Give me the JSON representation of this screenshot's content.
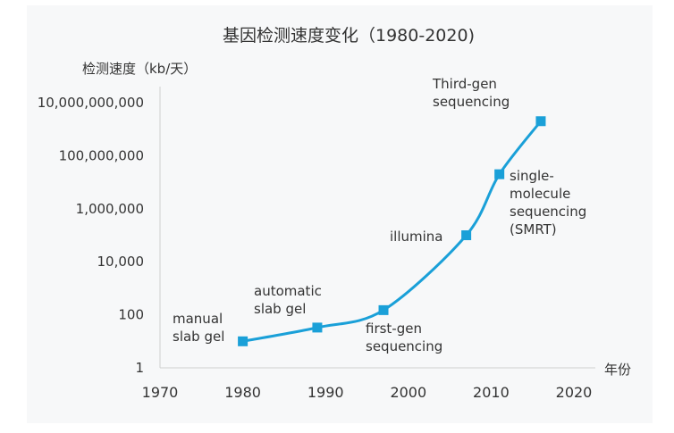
{
  "chart_data": {
    "type": "line",
    "title": "基因检测速度变化（1980-2020)",
    "ylabel": "检测速度（kb/天）",
    "xlabel": "年份",
    "x_ticks": [
      1970,
      1980,
      1990,
      2000,
      2010,
      2020
    ],
    "y_ticks": [
      "1",
      "100",
      "10,000",
      "1,000,000",
      "100,000,000",
      "10,000,000,000"
    ],
    "y_scale": "log",
    "xlim": [
      1970,
      2020
    ],
    "ylim": [
      1,
      10000000000
    ],
    "line_color": "#1aa0d8",
    "series": [
      {
        "x": [
          1980,
          1989,
          1997,
          2007,
          2011,
          2016
        ],
        "y": [
          10,
          33,
          150,
          100000,
          20000000,
          2000000000
        ]
      }
    ],
    "annotations": [
      "manual slab gel",
      "automatic slab gel",
      "first-gen sequencing",
      "illumina",
      "single-molecule sequencing (SMRT)",
      "Third-gen sequencing"
    ]
  }
}
